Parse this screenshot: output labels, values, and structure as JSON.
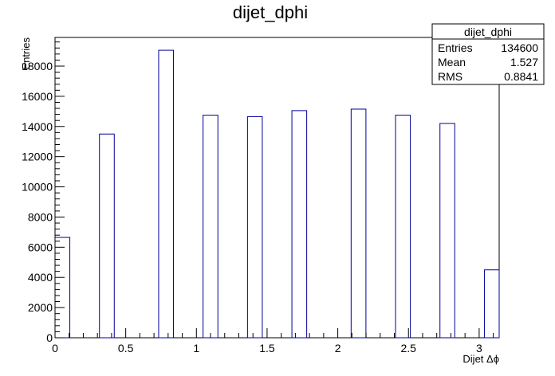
{
  "chart_data": {
    "type": "bar",
    "title": "dijet_dphi",
    "xlabel": "Dijet Δϕ",
    "ylabel": "Entries",
    "xlim": [
      0,
      3.1416
    ],
    "ylim": [
      0,
      19900
    ],
    "bin_width": 0.1047,
    "x_ticks": [
      0,
      0.5,
      1,
      1.5,
      2,
      2.5,
      3
    ],
    "x_tick_labels": [
      "0",
      "0.5",
      "1",
      "1.5",
      "2",
      "2.5",
      "3"
    ],
    "y_ticks": [
      0,
      2000,
      4000,
      6000,
      8000,
      10000,
      12000,
      14000,
      16000,
      18000
    ],
    "y_tick_labels": [
      "0",
      "2000",
      "4000",
      "6000",
      "8000",
      "10000",
      "12000",
      "14000",
      "16000",
      "18000"
    ],
    "bins": [
      {
        "x": 0.0,
        "value": 6650
      },
      {
        "x": 0.3142,
        "value": 13500
      },
      {
        "x": 0.733,
        "value": 19050
      },
      {
        "x": 1.0472,
        "value": 14750
      },
      {
        "x": 1.3614,
        "value": 14650
      },
      {
        "x": 1.6755,
        "value": 15050
      },
      {
        "x": 2.0944,
        "value": 15150
      },
      {
        "x": 2.4086,
        "value": 14750
      },
      {
        "x": 2.7227,
        "value": 14200
      },
      {
        "x": 3.0369,
        "value": 4500
      }
    ],
    "bar_color": "#000099"
  },
  "stats": {
    "title": "dijet_dphi",
    "rows": [
      {
        "label": "Entries",
        "value": "134600"
      },
      {
        "label": "Mean",
        "value": "1.527"
      },
      {
        "label": "RMS",
        "value": "0.8841"
      }
    ]
  }
}
